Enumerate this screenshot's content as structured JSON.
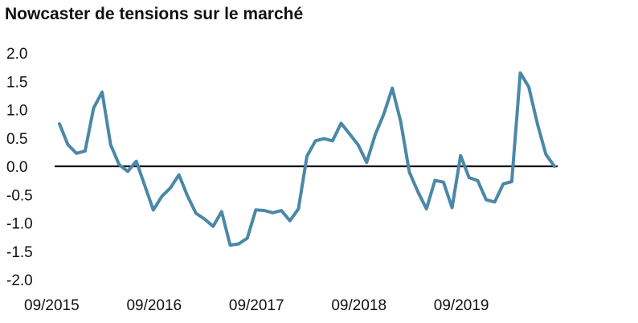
{
  "chart_data": {
    "type": "line",
    "title": "Nowcaster de tensions sur le marché",
    "xlabel": "",
    "ylabel": "",
    "ylim": [
      -2.0,
      2.0
    ],
    "y_ticks": [
      "2.0",
      "1.5",
      "1.0",
      "0.5",
      "0.0",
      "-0.5",
      "-1.0",
      "-1.5",
      "-2.0"
    ],
    "x_ticks": [
      {
        "label": "09/2015",
        "month_index": 0
      },
      {
        "label": "09/2016",
        "month_index": 12
      },
      {
        "label": "09/2017",
        "month_index": 24
      },
      {
        "label": "09/2018",
        "month_index": 36
      },
      {
        "label": "09/2019",
        "month_index": 48
      }
    ],
    "grid": false,
    "legend": "none",
    "line_color": "#4A88A6",
    "zero_line_color": "#000000",
    "series": [
      {
        "name": "",
        "values": [
          0.75,
          0.38,
          0.23,
          0.27,
          1.03,
          1.31,
          0.38,
          0.03,
          -0.09,
          0.09,
          -0.34,
          -0.77,
          -0.53,
          -0.38,
          -0.15,
          -0.52,
          -0.83,
          -0.93,
          -1.06,
          -0.8,
          -1.39,
          -1.37,
          -1.27,
          -0.77,
          -0.78,
          -0.82,
          -0.78,
          -0.96,
          -0.75,
          0.18,
          0.45,
          0.49,
          0.45,
          0.76,
          0.57,
          0.38,
          0.07,
          0.56,
          0.92,
          1.38,
          0.78,
          -0.1,
          -0.45,
          -0.75,
          -0.25,
          -0.28,
          -0.73,
          0.19,
          -0.2,
          -0.25,
          -0.59,
          -0.63,
          -0.31,
          -0.27,
          1.65,
          1.4,
          0.75,
          0.21,
          0.0
        ]
      }
    ]
  }
}
